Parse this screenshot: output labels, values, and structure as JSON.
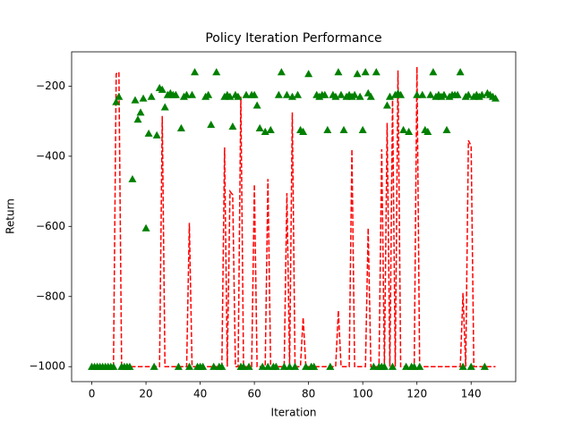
{
  "chart_data": {
    "type": "line",
    "title": "Policy Iteration Performance",
    "x_label": "Iteration",
    "y_label": "Return",
    "x": [
      0,
      1,
      2,
      3,
      4,
      5,
      6,
      7,
      8,
      9,
      10,
      11,
      12,
      13,
      14,
      15,
      16,
      17,
      18,
      19,
      20,
      21,
      22,
      23,
      24,
      25,
      26,
      27,
      28,
      29,
      30,
      31,
      32,
      33,
      34,
      35,
      36,
      37,
      38,
      39,
      40,
      41,
      42,
      43,
      44,
      45,
      46,
      47,
      48,
      49,
      50,
      51,
      52,
      53,
      54,
      55,
      56,
      57,
      58,
      59,
      60,
      61,
      62,
      63,
      64,
      65,
      66,
      67,
      68,
      69,
      70,
      71,
      72,
      73,
      74,
      75,
      76,
      77,
      78,
      79,
      80,
      81,
      82,
      83,
      84,
      85,
      86,
      87,
      88,
      89,
      90,
      91,
      92,
      93,
      94,
      95,
      96,
      97,
      98,
      99,
      100,
      101,
      102,
      103,
      104,
      105,
      106,
      107,
      108,
      109,
      110,
      111,
      112,
      113,
      114,
      115,
      116,
      117,
      118,
      119,
      120,
      121,
      122,
      123,
      124,
      125,
      126,
      127,
      128,
      129,
      130,
      131,
      132,
      133,
      134,
      135,
      136,
      137,
      138,
      139,
      140,
      141,
      142,
      143,
      144,
      145,
      146,
      147,
      148,
      149
    ],
    "series": [
      {
        "color": "#ff0000",
        "line_style": "dashed",
        "marker": "none",
        "values": [
          -1000,
          -1000,
          -1000,
          -1000,
          -1000,
          -1000,
          -1000,
          -1000,
          -1000,
          -165,
          -160,
          -1000,
          -1000,
          -1000,
          -1000,
          -1000,
          -1000,
          -1000,
          -1000,
          -1000,
          -1000,
          -1000,
          -1000,
          -1000,
          -1000,
          -1000,
          -285,
          -1000,
          -1000,
          -1000,
          -1000,
          -1000,
          -1000,
          -1000,
          -1000,
          -1000,
          -590,
          -1000,
          -1000,
          -1000,
          -1000,
          -1000,
          -1000,
          -1000,
          -1000,
          -1000,
          -1000,
          -1000,
          -1000,
          -375,
          -1000,
          -500,
          -510,
          -1000,
          -1000,
          -230,
          -1000,
          -1000,
          -1000,
          -1000,
          -480,
          -1000,
          -1000,
          -1000,
          -1000,
          -465,
          -1000,
          -1000,
          -1000,
          -1000,
          -1000,
          -1000,
          -505,
          -1000,
          -275,
          -1000,
          -1000,
          -1000,
          -860,
          -1000,
          -1000,
          -1000,
          -1000,
          -1000,
          -1000,
          -1000,
          -1000,
          -1000,
          -1000,
          -1000,
          -1000,
          -840,
          -1000,
          -1000,
          -1000,
          -1000,
          -380,
          -1000,
          -1000,
          -1000,
          -1000,
          -1000,
          -605,
          -1000,
          -1000,
          -1000,
          -1000,
          -380,
          -1000,
          -305,
          -1000,
          -230,
          -1000,
          -155,
          -1000,
          -1000,
          -1000,
          -1000,
          -1000,
          -1000,
          -145,
          -1000,
          -1000,
          -1000,
          -1000,
          -1000,
          -1000,
          -1000,
          -1000,
          -1000,
          -1000,
          -1000,
          -1000,
          -1000,
          -1000,
          -1000,
          -1000,
          -790,
          -1000,
          -355,
          -370,
          -1000,
          -1000,
          -1000,
          -1000,
          -1000,
          -1000,
          -1000,
          -1000,
          -1000
        ]
      },
      {
        "color": "#008000",
        "line_style": "none",
        "marker": "triangle",
        "values": [
          -1000,
          -1000,
          -1000,
          -1000,
          -1000,
          -1000,
          -1000,
          -1000,
          -1000,
          -245,
          -230,
          -1000,
          -1000,
          -1000,
          -1000,
          -465,
          -240,
          -295,
          -275,
          -235,
          -605,
          -335,
          -230,
          -1000,
          -340,
          -205,
          -210,
          -260,
          -225,
          -220,
          -225,
          -225,
          -1000,
          -320,
          -230,
          -225,
          -1000,
          -225,
          -160,
          -1000,
          -1000,
          -1000,
          -230,
          -225,
          -310,
          -1000,
          -160,
          -1000,
          -1000,
          -230,
          -225,
          -230,
          -315,
          -225,
          -230,
          -1000,
          -1000,
          -225,
          -1000,
          -225,
          -225,
          -255,
          -320,
          -1000,
          -330,
          -1000,
          -325,
          -1000,
          -1000,
          -225,
          -160,
          -1000,
          -225,
          -1000,
          -230,
          -1000,
          -225,
          -325,
          -330,
          -1000,
          -165,
          -1000,
          -1000,
          -225,
          -230,
          -225,
          -225,
          -325,
          -1000,
          -225,
          -230,
          -160,
          -225,
          -325,
          -230,
          -225,
          -230,
          -225,
          -165,
          -230,
          -325,
          -160,
          -220,
          -230,
          -1000,
          -160,
          -1000,
          -1000,
          -1000,
          -255,
          -230,
          -1000,
          -225,
          -220,
          -225,
          -325,
          -1000,
          -330,
          -1000,
          -1000,
          -225,
          -1000,
          -225,
          -325,
          -330,
          -225,
          -160,
          -230,
          -225,
          -230,
          -225,
          -325,
          -230,
          -225,
          -225,
          -225,
          -160,
          -1000,
          -230,
          -225,
          -1000,
          -230,
          -225,
          -230,
          -225,
          -1000,
          -220,
          -225,
          -230,
          -235
        ]
      }
    ],
    "xlim": [
      -7.45,
      156.45
    ],
    "ylim": [
      -1042.75,
      -102.25
    ],
    "xticks": [
      0,
      20,
      40,
      60,
      80,
      100,
      120,
      140
    ],
    "yticks": [
      {
        "value": -1000,
        "label": "−1000"
      },
      {
        "value": -800,
        "label": "−800"
      },
      {
        "value": -600,
        "label": "−600"
      },
      {
        "value": -400,
        "label": "−400"
      },
      {
        "value": -200,
        "label": "−200"
      }
    ],
    "grid": false
  }
}
